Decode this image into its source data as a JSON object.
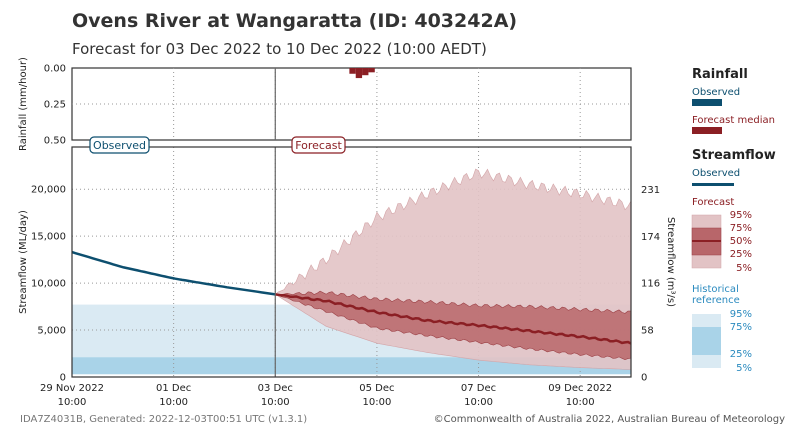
{
  "title": "Ovens River at Wangaratta (ID: 403242A)",
  "subtitle": "Forecast for 03 Dec 2022 to 10 Dec 2022 (10:00 AEDT)",
  "footer_left": "IDA7Z4031B, Generated: 2022-12-03T00:51 UTC (v1.3.1)",
  "footer_right": "©Commonwealth of Australia 2022, Australian Bureau of Meteorology",
  "colors": {
    "observed": "#0d4f6f",
    "forecast": "#8b1f24",
    "band_outer": "#e2c3c5",
    "band_inner": "#b8666a",
    "hist_outer": "#daeaf3",
    "hist_inner": "#a9d3e8",
    "hist_text": "#2a8abf"
  },
  "labels": {
    "observed_box": "Observed",
    "forecast_box": "Forecast"
  },
  "legend": {
    "rainfall_title": "Rainfall",
    "rain_observed": "Observed",
    "rain_forecast": "Forecast median",
    "streamflow_title": "Streamflow",
    "flow_observed": "Observed",
    "flow_forecast": "Forecast",
    "p95": "95%",
    "p75": "75%",
    "p50": "50%",
    "p25": "25%",
    "p5": "5%",
    "hist_title_1": "Historical",
    "hist_title_2": "reference",
    "h95": "95%",
    "h75": "75%",
    "h25": "25%",
    "h5": "5%"
  },
  "chart_data": [
    {
      "type": "bar",
      "title": "",
      "ylabel": "Rainfall (mm/hour)",
      "ylim": [
        0.5,
        0.0
      ],
      "yticks": [
        "0.00",
        "0.25",
        "0.50"
      ],
      "series": [
        {
          "name": "Forecast median",
          "x": [
            "2022-12-04T21:00",
            "2022-12-05T00:00",
            "2022-12-05T03:00",
            "2022-12-05T06:00"
          ],
          "values": [
            0.04,
            0.07,
            0.05,
            0.03
          ]
        }
      ]
    },
    {
      "type": "area",
      "ylabel": "Streamflow (ML/day)",
      "y2label": "Streamflow (m³/s)",
      "xlim": [
        "2022-11-29T10:00",
        "2022-12-10T10:00"
      ],
      "ylim": [
        0,
        24500
      ],
      "yticks": [
        "0",
        "5,000",
        "10,000",
        "15,000",
        "20,000"
      ],
      "y2ticks": [
        "0",
        "58",
        "116",
        "174",
        "231"
      ],
      "xticks": [
        {
          "date": "29 Nov 2022",
          "time": "10:00"
        },
        {
          "date": "01 Dec",
          "time": "10:00"
        },
        {
          "date": "03 Dec",
          "time": "10:00"
        },
        {
          "date": "05 Dec",
          "time": "10:00"
        },
        {
          "date": "07 Dec",
          "time": "10:00"
        },
        {
          "date": "09 Dec 2022",
          "time": "10:00"
        }
      ],
      "forecast_start": "2022-12-03T10:00",
      "historical_reference": {
        "p5": 300,
        "p25": 2100,
        "p75": 7700,
        "p95": 7700
      },
      "observed": {
        "x": [
          "2022-11-29T10:00",
          "2022-11-30T10:00",
          "2022-12-01T10:00",
          "2022-12-02T10:00",
          "2022-12-03T10:00"
        ],
        "values": [
          13300,
          11700,
          10500,
          9600,
          8800
        ]
      },
      "forecast": {
        "x": [
          "2022-12-03T10:00",
          "2022-12-04T10:00",
          "2022-12-05T10:00",
          "2022-12-06T10:00",
          "2022-12-07T10:00",
          "2022-12-08T10:00",
          "2022-12-09T10:00",
          "2022-12-10T10:00"
        ],
        "p95": [
          8800,
          12500,
          17000,
          19500,
          21800,
          20500,
          19500,
          18200
        ],
        "p75": [
          8800,
          9000,
          8300,
          8000,
          7600,
          7500,
          7200,
          6900
        ],
        "p50": [
          8800,
          8100,
          6900,
          6000,
          5500,
          4900,
          4300,
          3600
        ],
        "p25": [
          8800,
          7000,
          5200,
          4400,
          3700,
          3000,
          2400,
          1900
        ],
        "p5": [
          8800,
          5400,
          3600,
          2600,
          1800,
          1300,
          1000,
          800
        ]
      }
    }
  ]
}
